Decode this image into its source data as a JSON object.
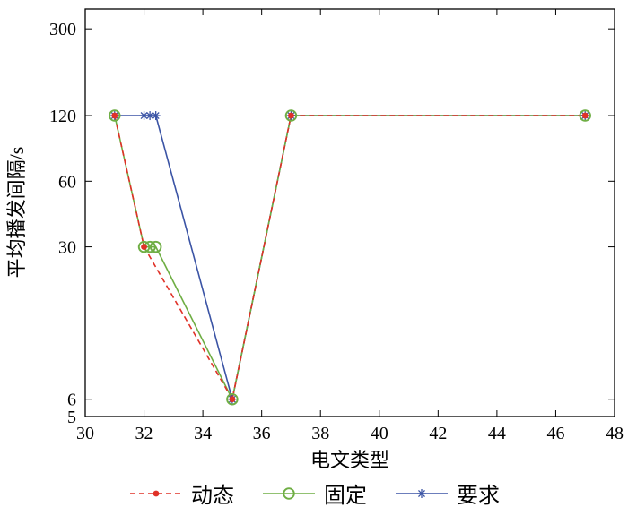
{
  "background_color": "#ffffff",
  "chart_data": {
    "type": "line",
    "title": "",
    "xlabel": "电文类型",
    "ylabel": "平均播发间隔/s",
    "xlim": [
      30,
      48
    ],
    "ylim": [
      5,
      370
    ],
    "x_scale": "linear",
    "y_scale": "log",
    "grid": "off",
    "xticks": [
      30,
      32,
      34,
      36,
      38,
      40,
      42,
      44,
      46,
      48
    ],
    "yticks": [
      5,
      6,
      30,
      60,
      120,
      300
    ],
    "legend_position": "bottom-center",
    "axis_color": "#000000",
    "series": [
      {
        "name": "动态",
        "color": "#e03127",
        "line": "dashed",
        "marker": "filled-circle",
        "points": [
          [
            31,
            120
          ],
          [
            32,
            30
          ],
          [
            35,
            6
          ],
          [
            37,
            120
          ],
          [
            47,
            120
          ]
        ]
      },
      {
        "name": "固定",
        "color": "#6fae44",
        "line": "solid",
        "marker": "open-circle",
        "points": [
          [
            31,
            120
          ],
          [
            32,
            30
          ],
          [
            32.2,
            30
          ],
          [
            32.4,
            30
          ],
          [
            35,
            6
          ],
          [
            37,
            120
          ],
          [
            47,
            120
          ]
        ]
      },
      {
        "name": "要求",
        "color": "#3b54a5",
        "line": "solid",
        "marker": "asterisk",
        "points": [
          [
            31,
            120
          ],
          [
            32,
            120
          ],
          [
            32.2,
            120
          ],
          [
            32.4,
            120
          ],
          [
            35,
            6
          ],
          [
            37,
            120
          ],
          [
            47,
            120
          ]
        ]
      }
    ]
  }
}
